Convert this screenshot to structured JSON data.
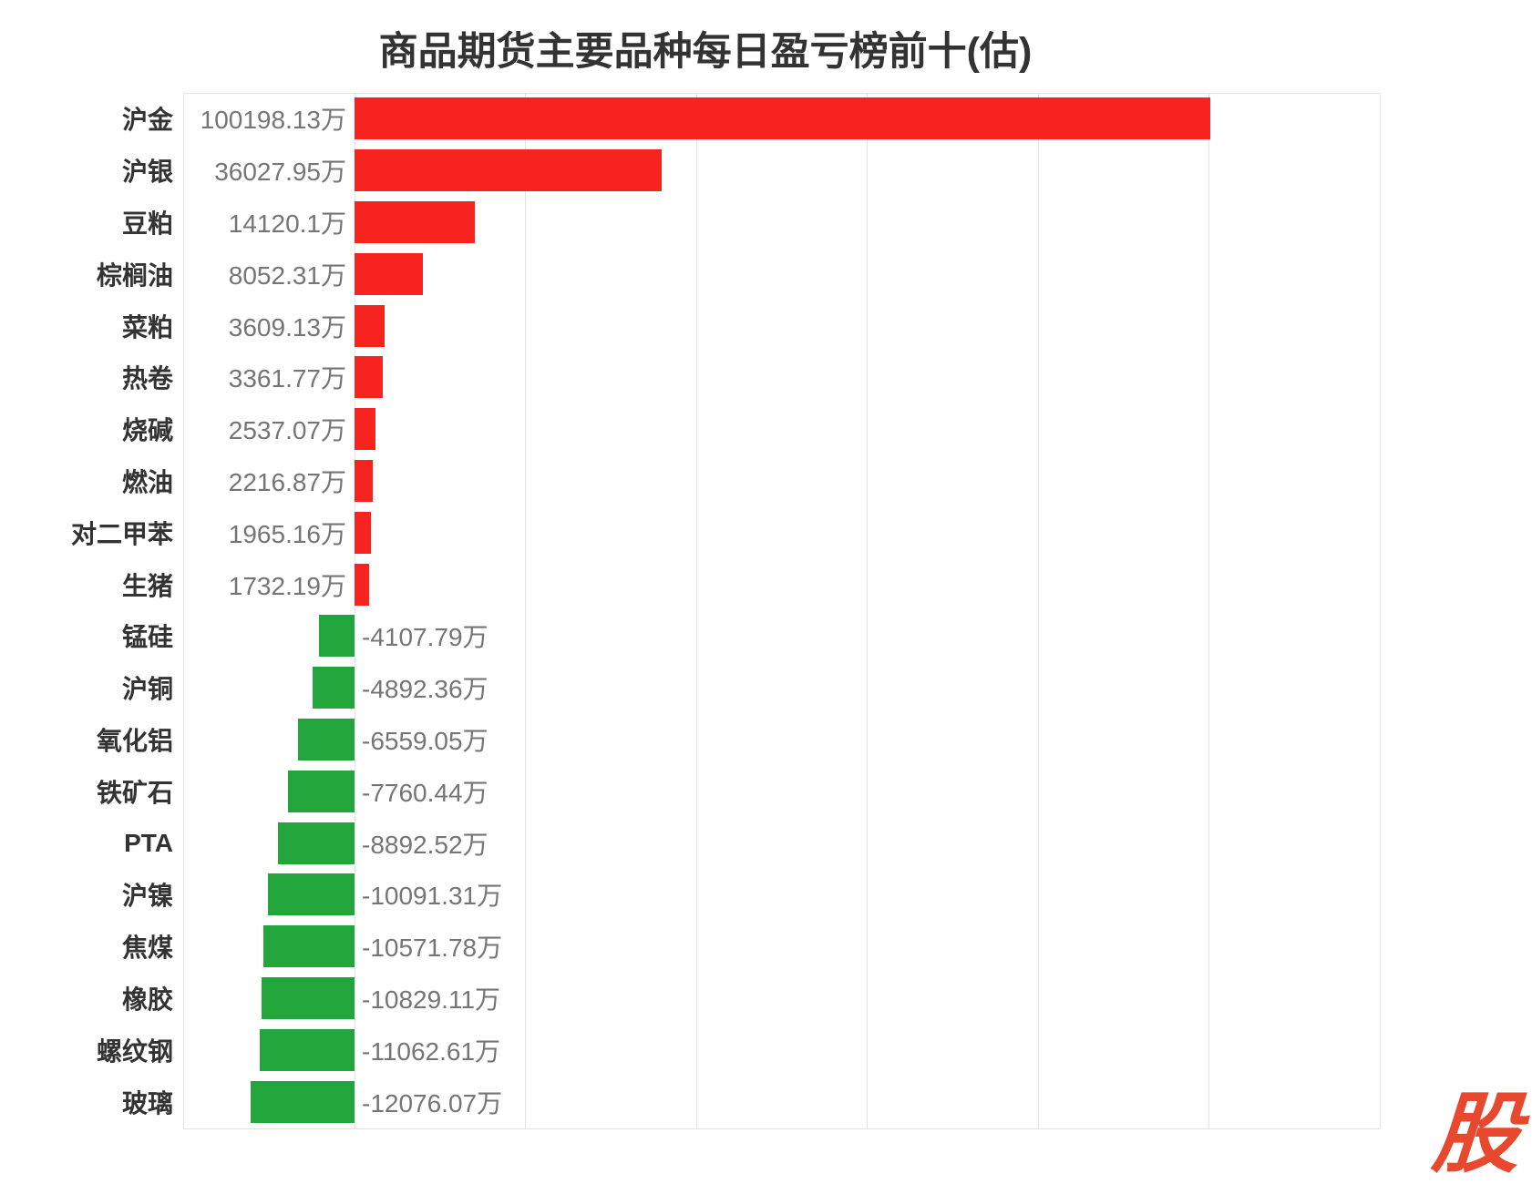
{
  "title": "商品期货主要品种每日盈亏榜前十(估)",
  "watermark": {
    "text": "股",
    "color": "#e8482e"
  },
  "chart_data": {
    "type": "bar",
    "orientation": "horizontal",
    "title": "商品期货主要品种每日盈亏榜前十(估)",
    "unit": "万",
    "categories": [
      "沪金",
      "沪银",
      "豆粕",
      "棕榈油",
      "菜粕",
      "热卷",
      "烧碱",
      "燃油",
      "对二甲苯",
      "生猪",
      "锰硅",
      "沪铜",
      "氧化铝",
      "铁矿石",
      "PTA",
      "沪镍",
      "焦煤",
      "橡胶",
      "螺纹钢",
      "玻璃"
    ],
    "values": [
      100198.13,
      36027.95,
      14120.1,
      8052.31,
      3609.13,
      3361.77,
      2537.07,
      2216.87,
      1965.16,
      1732.19,
      -4107.79,
      -4892.36,
      -6559.05,
      -7760.44,
      -8892.52,
      -10091.31,
      -10571.78,
      -10829.11,
      -11062.61,
      -12076.07
    ],
    "value_labels": [
      "100198.13万",
      "36027.95万",
      "14120.1万",
      "8052.31万",
      "3609.13万",
      "3361.77万",
      "2537.07万",
      "2216.87万",
      "1965.16万",
      "1732.19万",
      "-4107.79万",
      "-4892.36万",
      "-6559.05万",
      "-7760.44万",
      "-8892.52万",
      "-10091.31万",
      "-10571.78万",
      "-10829.11万",
      "-11062.61万",
      "-12076.07万"
    ],
    "xlim": [
      -20000,
      120000
    ],
    "grid_step": 20000,
    "grid": true,
    "legend": false,
    "colors": {
      "positive": "#f7231f",
      "negative": "#22a63c"
    }
  }
}
